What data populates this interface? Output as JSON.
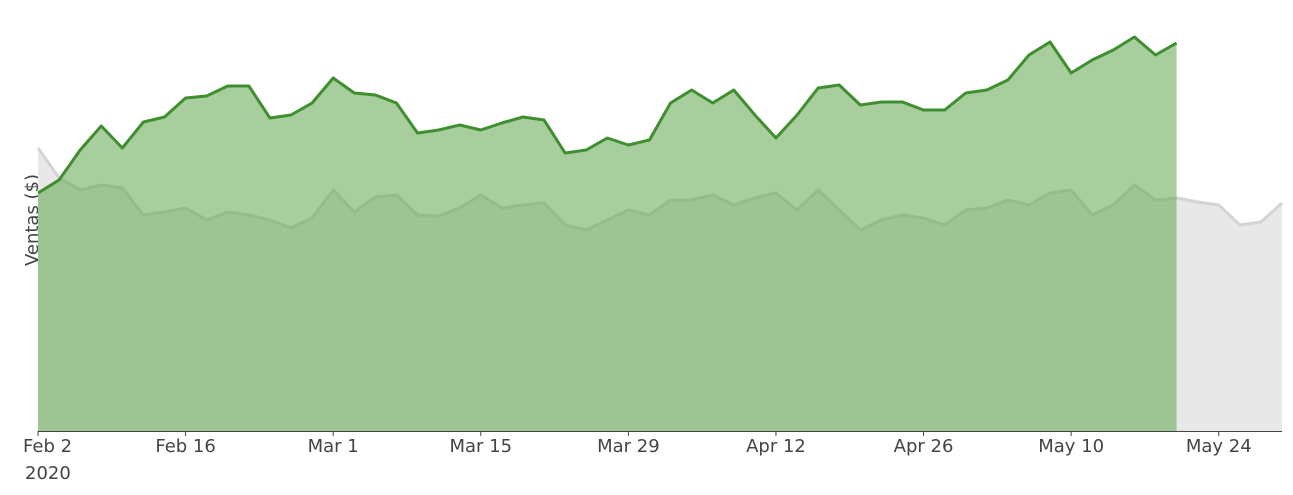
{
  "chart_data": {
    "type": "area",
    "ylabel": "Ventas ($)",
    "x": [
      "2020-02-02",
      "2020-02-04",
      "2020-02-06",
      "2020-02-08",
      "2020-02-10",
      "2020-02-12",
      "2020-02-14",
      "2020-02-16",
      "2020-02-18",
      "2020-02-20",
      "2020-02-22",
      "2020-02-24",
      "2020-02-26",
      "2020-02-28",
      "2020-03-01",
      "2020-03-03",
      "2020-03-05",
      "2020-03-07",
      "2020-03-09",
      "2020-03-11",
      "2020-03-13",
      "2020-03-15",
      "2020-03-17",
      "2020-03-19",
      "2020-03-21",
      "2020-03-23",
      "2020-03-25",
      "2020-03-27",
      "2020-03-29",
      "2020-03-31",
      "2020-04-02",
      "2020-04-04",
      "2020-04-06",
      "2020-04-08",
      "2020-04-10",
      "2020-04-12",
      "2020-04-14",
      "2020-04-16",
      "2020-04-18",
      "2020-04-20",
      "2020-04-22",
      "2020-04-24",
      "2020-04-26",
      "2020-04-28",
      "2020-04-30",
      "2020-05-02",
      "2020-05-04",
      "2020-05-06",
      "2020-05-08",
      "2020-05-10",
      "2020-05-12",
      "2020-05-14",
      "2020-05-16",
      "2020-05-18",
      "2020-05-20",
      "2020-05-22",
      "2020-05-24",
      "2020-05-26",
      "2020-05-28",
      "2020-05-30"
    ],
    "series": [
      {
        "color": "#d4d4d4",
        "fill": "#e8e8e8",
        "values": [
          283,
          253,
          241,
          246,
          243,
          216,
          219,
          223,
          211,
          219,
          216,
          211,
          203,
          213,
          241,
          219,
          234,
          236,
          216,
          215,
          223,
          236,
          223,
          226,
          228,
          206,
          201,
          211,
          221,
          216,
          231,
          231,
          236,
          226,
          233,
          238,
          221,
          241,
          221,
          201,
          211,
          216,
          213,
          206,
          221,
          223,
          231,
          226,
          238,
          241,
          216,
          226,
          246,
          231,
          233,
          229,
          226,
          206,
          209,
          228
        ]
      },
      {
        "color": "#3f8f2f",
        "fill": "rgba(95,165,75,0.55)",
        "values": [
          238,
          251,
          281,
          305,
          283,
          309,
          314,
          333,
          335,
          345,
          345,
          313,
          316,
          328,
          353,
          338,
          336,
          328,
          298,
          301,
          306,
          301,
          308,
          314,
          311,
          278,
          281,
          293,
          286,
          291,
          328,
          341,
          328,
          341,
          316,
          293,
          316,
          343,
          346,
          326,
          329,
          329,
          321,
          321,
          338,
          341,
          351,
          376,
          389,
          358,
          371,
          381,
          394,
          376,
          388,
          null,
          null,
          null,
          null,
          null
        ]
      }
    ],
    "xlim": [
      "2020-02-02",
      "2020-05-30"
    ],
    "ylim": [
      0,
      411
    ],
    "xticks": [
      {
        "value": "2020-02-02",
        "label": "Feb 2"
      },
      {
        "value": "2020-02-16",
        "label": "Feb 16"
      },
      {
        "value": "2020-03-01",
        "label": "Mar 1"
      },
      {
        "value": "2020-03-15",
        "label": "Mar 15"
      },
      {
        "value": "2020-03-29",
        "label": "Mar 29"
      },
      {
        "value": "2020-04-12",
        "label": "Apr 12"
      },
      {
        "value": "2020-04-26",
        "label": "Apr 26"
      },
      {
        "value": "2020-05-10",
        "label": "May 10"
      },
      {
        "value": "2020-05-24",
        "label": "May 24"
      }
    ],
    "x_year_label": "2020"
  }
}
